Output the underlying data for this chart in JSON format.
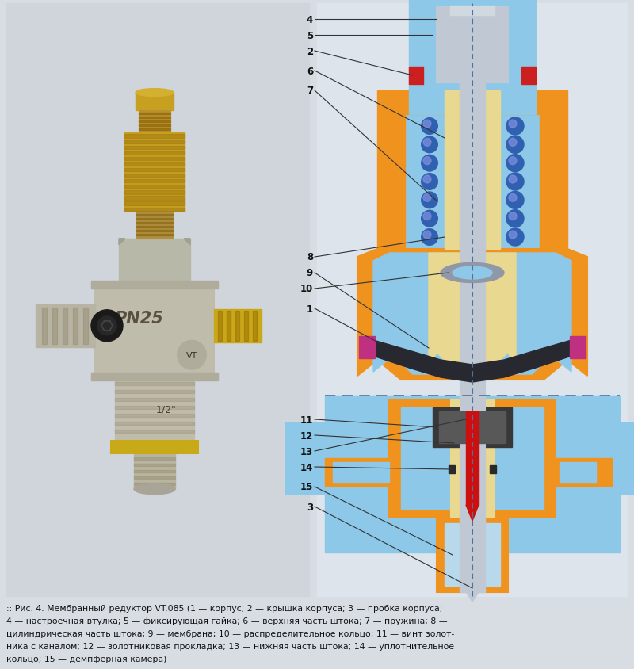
{
  "bg_color": "#dce0e6",
  "caption_lines": [
    ":: Рис. 4. Мембранный редуктор VT.085 (1 — корпус; 2 — крышка корпуса; 3 — пробка корпуса;",
    "4 — настроечная втулка; 5 — фиксирующая гайка; 6 — верхняя часть штока; 7 — пружина; 8 —",
    "цилиндрическая часть штока; 9 — мембрана; 10 — распределительное кольцо; 11 — винт золот-",
    "ника с каналом; 12 — золотниковая прокладка; 13 — нижняя часть штока; 14 — уплотнительное",
    "кольцо; 15 — демпферная камера)"
  ],
  "colors": {
    "bg": "#d8dde4",
    "photo_bg": "#cdd2d8",
    "diag_bg": "#e8edf2",
    "orange": "#f0921e",
    "orange_dark": "#c06000",
    "blue_light": "#8ec8e8",
    "blue_mid": "#60a8d0",
    "gray_light": "#b8c0c8",
    "gray_mid": "#8090a0",
    "gray_dark": "#505860",
    "yellow_light": "#e8d890",
    "red": "#cc1010",
    "red_seal": "#cc2020",
    "blue_dots": "#3060b0",
    "magenta": "#c03080",
    "dark": "#252830",
    "white": "#ffffff",
    "silver": "#c0c8d4",
    "silver_dark": "#909aaa"
  }
}
